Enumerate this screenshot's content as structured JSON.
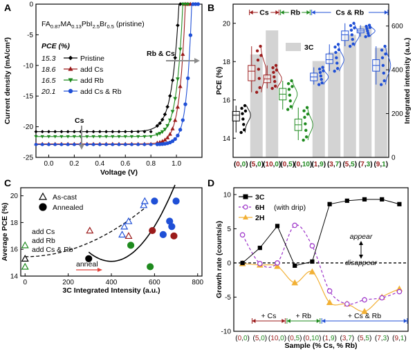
{
  "colors": {
    "pristine": "#000000",
    "cs": "#9b1b1b",
    "rb": "#1e8a1e",
    "csrb": "#1f4fd6",
    "bar": "#d3d3d3",
    "purple": "#9b30c8",
    "orange": "#f2b035",
    "arrow_grey": "#8a8a8a",
    "anneal_red": "#e0413a"
  },
  "chart_data": [
    {
      "id": "A",
      "type": "line",
      "panel_label": "A",
      "title_prefix": "FA",
      "title_sub1": "0.87",
      "title_mid": "MA",
      "title_sub2": "0.13",
      "title_mid2": "PbI",
      "title_sub3": "2.5",
      "title_mid3": "Br",
      "title_sub4": "0.5",
      "title_suffix": " (pristine)",
      "xlabel": "Voltage (V)",
      "ylabel": "Current density (mA/cm²)",
      "xlim": [
        -0.1,
        1.2
      ],
      "ylim": [
        -25,
        0
      ],
      "xticks": [
        "0.0",
        "0.2",
        "0.4",
        "0.6",
        "0.8",
        "1.0"
      ],
      "yticks": [
        "-25",
        "-20",
        "-15",
        "-10",
        "-5",
        "0"
      ],
      "pce_header": "PCE (%)",
      "annotations": {
        "rb_cs": "Rb & Cs",
        "cs": "Cs"
      },
      "series": [
        {
          "name": "Pristine",
          "pce": "15.3",
          "jsc": -20.8,
          "voc": 1.02,
          "k": 0.055
        },
        {
          "name": "add Cs",
          "pce": "18.6",
          "jsc": -22.8,
          "voc": 1.07,
          "k": 0.045
        },
        {
          "name": "add Rb",
          "pce": "16.5",
          "jsc": -21.6,
          "voc": 1.05,
          "k": 0.048
        },
        {
          "name": "add Cs & Rb",
          "pce": "20.1",
          "jsc": -22.9,
          "voc": 1.12,
          "k": 0.04
        }
      ]
    },
    {
      "id": "B",
      "type": "bar",
      "panel_label": "B",
      "ylabel": "PCE (%)",
      "y2label": "Integrated intensity (a.u.)",
      "ylim": [
        13,
        21
      ],
      "y2lim": [
        0,
        700
      ],
      "yticks": [
        "14",
        "16",
        "18",
        "20"
      ],
      "y2ticks": [
        "0",
        "200",
        "400",
        "600"
      ],
      "legend_bar": "3C",
      "group_labels": {
        "cs": "Cs",
        "rb": "Rb",
        "csrb": "Cs & Rb"
      },
      "categories": [
        "(0,0)",
        "(5,0)",
        "(10,0)",
        "(0,5)",
        "(0,10)",
        "(1,9)",
        "(3,7)",
        "(5,5)",
        "(7,3)",
        "(9,1)"
      ],
      "bar_values": [
        0,
        470,
        580,
        0,
        0,
        440,
        480,
        560,
        600,
        500
      ],
      "pce_median": [
        15.2,
        17.5,
        17.1,
        16.3,
        14.7,
        17.2,
        18.1,
        19.4,
        19.6,
        17.8
      ],
      "box_q1": [
        14.9,
        17.0,
        16.9,
        16.0,
        14.4,
        17.0,
        17.9,
        19.1,
        19.5,
        17.5
      ],
      "box_q3": [
        15.4,
        17.8,
        17.3,
        16.6,
        15.0,
        17.4,
        18.4,
        19.6,
        19.7,
        18.1
      ],
      "whisk_lo": [
        14.3,
        16.4,
        16.6,
        15.5,
        13.9,
        16.8,
        17.5,
        18.8,
        19.3,
        16.8
      ],
      "whisk_hi": [
        15.7,
        18.8,
        17.8,
        17.0,
        15.6,
        17.7,
        18.9,
        20.0,
        19.9,
        18.8
      ]
    },
    {
      "id": "C",
      "type": "scatter",
      "panel_label": "C",
      "xlabel": "3C Integrated Intensity (a.u.)",
      "ylabel": "Average PCE (%)",
      "xlim": [
        -20,
        820
      ],
      "ylim": [
        14,
        20.6
      ],
      "xticks": [
        "0",
        "200",
        "400",
        "600",
        "800"
      ],
      "yticks": [
        "14",
        "16",
        "18",
        "20"
      ],
      "legend": {
        "ascast": "As-cast",
        "annealed": "Annealed"
      },
      "group_legend": {
        "cs": "add Cs",
        "rb": "add Rb",
        "csrb": "add Cs & Rb"
      },
      "anneal_label": "anneal",
      "ascast_points": [
        {
          "x": 0,
          "y": 15.3,
          "g": "pristine"
        },
        {
          "x": 0,
          "y": 16.3,
          "g": "rb"
        },
        {
          "x": 0,
          "y": 14.7,
          "g": "rb"
        },
        {
          "x": 300,
          "y": 17.4,
          "g": "cs"
        },
        {
          "x": 480,
          "y": 17.0,
          "g": "cs"
        },
        {
          "x": 450,
          "y": 17.1,
          "g": "csrb"
        },
        {
          "x": 460,
          "y": 17.7,
          "g": "csrb"
        },
        {
          "x": 480,
          "y": 18.1,
          "g": "csrb"
        },
        {
          "x": 550,
          "y": 19.3,
          "g": "csrb"
        },
        {
          "x": 555,
          "y": 19.6,
          "g": "csrb"
        }
      ],
      "annealed_points": [
        {
          "x": 295,
          "y": 15.3,
          "g": "pristine"
        },
        {
          "x": 490,
          "y": 16.3,
          "g": "rb"
        },
        {
          "x": 580,
          "y": 14.7,
          "g": "rb"
        },
        {
          "x": 590,
          "y": 17.4,
          "g": "cs"
        },
        {
          "x": 690,
          "y": 17.0,
          "g": "cs"
        },
        {
          "x": 640,
          "y": 17.1,
          "g": "csrb"
        },
        {
          "x": 680,
          "y": 17.7,
          "g": "csrb"
        },
        {
          "x": 670,
          "y": 18.1,
          "g": "csrb"
        },
        {
          "x": 600,
          "y": 19.6,
          "g": "csrb"
        },
        {
          "x": 700,
          "y": 19.6,
          "g": "csrb"
        }
      ]
    },
    {
      "id": "D",
      "type": "line",
      "panel_label": "D",
      "xlabel": "Sample (% Cs, % Rb)",
      "ylabel": "Growth rate (counts/s)",
      "ylim": [
        -10,
        11
      ],
      "yticks": [
        "-10",
        "-5",
        "0",
        "5",
        "10"
      ],
      "categories": [
        "(0,0)",
        "(5,0)",
        "(10,0)",
        "(0,5)",
        "(0,10)",
        "(1,9)",
        "(3,7)",
        "(5,5)",
        "(7,3)",
        "(9,1)"
      ],
      "legend_note": "(with drip)",
      "annotations": {
        "appear": "appear",
        "disappear": "disappear"
      },
      "group_brackets": {
        "cs": "+ Cs",
        "rb": "+ Rb",
        "csrb": "+ Cs & Rb"
      },
      "series": [
        {
          "name": "3C",
          "values": [
            0.0,
            2.2,
            5.4,
            -0.4,
            0.2,
            8.6,
            9.1,
            9.3,
            9.3,
            8.6
          ]
        },
        {
          "name": "6H",
          "values": [
            4.1,
            -0.1,
            0.0,
            5.5,
            2.5,
            -4.1,
            -6.0,
            -5.4,
            -5.1,
            -4.2
          ]
        },
        {
          "name": "2H",
          "values": [
            -0.1,
            -0.3,
            -0.5,
            -2.9,
            -1.3,
            -5.8,
            -6.0,
            -7.1,
            -5.0,
            -3.8
          ]
        }
      ]
    }
  ]
}
